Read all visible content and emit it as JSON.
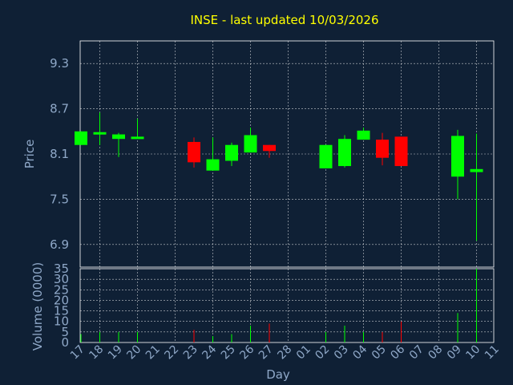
{
  "chart_data": {
    "type": "candlestick",
    "title": "INSE - last updated 10/03/2026",
    "xlabel": "Day",
    "price_panel": {
      "ylabel": "Price",
      "yticks": [
        6.9,
        7.5,
        8.1,
        8.7,
        9.3
      ],
      "ylim": [
        6.6,
        9.6
      ]
    },
    "volume_panel": {
      "ylabel": "Volume (0000)",
      "yticks": [
        0,
        5,
        10,
        15,
        20,
        25,
        30,
        35
      ],
      "ylim": [
        0,
        35
      ]
    },
    "x_labels": [
      "17",
      "18",
      "19",
      "20",
      "21",
      "22",
      "23",
      "24",
      "25",
      "26",
      "27",
      "28",
      "01",
      "02",
      "03",
      "04",
      "05",
      "06",
      "07",
      "08",
      "09",
      "10",
      "11"
    ],
    "colors": {
      "up": "#00ff00",
      "down": "#ff0000",
      "background": "#0f2035",
      "text": "#8fa8c8",
      "title": "#ffff00"
    },
    "candles": [
      {
        "slot": 0.0,
        "open": 8.22,
        "high": 8.4,
        "low": 8.22,
        "close": 8.4,
        "volume": 4
      },
      {
        "slot": 1.0,
        "open": 8.36,
        "high": 8.65,
        "low": 8.22,
        "close": 8.39,
        "volume": 5
      },
      {
        "slot": 2.0,
        "open": 8.3,
        "high": 8.38,
        "low": 8.06,
        "close": 8.36,
        "volume": 5
      },
      {
        "slot": 3.0,
        "open": 8.3,
        "high": 8.57,
        "low": 8.3,
        "close": 8.33,
        "volume": 5
      },
      {
        "slot": 6.0,
        "open": 8.26,
        "high": 8.32,
        "low": 7.92,
        "close": 7.99,
        "volume": 6
      },
      {
        "slot": 7.0,
        "open": 7.88,
        "high": 8.32,
        "low": 7.88,
        "close": 8.03,
        "volume": 3
      },
      {
        "slot": 8.0,
        "open": 8.01,
        "high": 8.25,
        "low": 7.94,
        "close": 8.22,
        "volume": 4
      },
      {
        "slot": 9.0,
        "open": 8.12,
        "high": 8.45,
        "low": 8.12,
        "close": 8.35,
        "volume": 8
      },
      {
        "slot": 10.0,
        "open": 8.22,
        "high": 8.22,
        "low": 8.05,
        "close": 8.14,
        "volume": 9
      },
      {
        "slot": 13.0,
        "open": 7.91,
        "high": 8.22,
        "low": 7.91,
        "close": 8.22,
        "volume": 5
      },
      {
        "slot": 14.0,
        "open": 7.94,
        "high": 8.35,
        "low": 7.92,
        "close": 8.3,
        "volume": 8
      },
      {
        "slot": 15.0,
        "open": 8.29,
        "high": 8.45,
        "low": 8.29,
        "close": 8.41,
        "volume": 5
      },
      {
        "slot": 16.0,
        "open": 8.29,
        "high": 8.38,
        "low": 7.95,
        "close": 8.05,
        "volume": 5
      },
      {
        "slot": 17.0,
        "open": 8.33,
        "high": 8.33,
        "low": 7.94,
        "close": 7.94,
        "volume": 10
      },
      {
        "slot": 20.0,
        "open": 7.8,
        "high": 8.42,
        "low": 7.5,
        "close": 8.34,
        "volume": 14
      },
      {
        "slot": 21.0,
        "open": 7.86,
        "high": 8.37,
        "low": 6.95,
        "close": 7.9,
        "volume": 35
      }
    ]
  }
}
